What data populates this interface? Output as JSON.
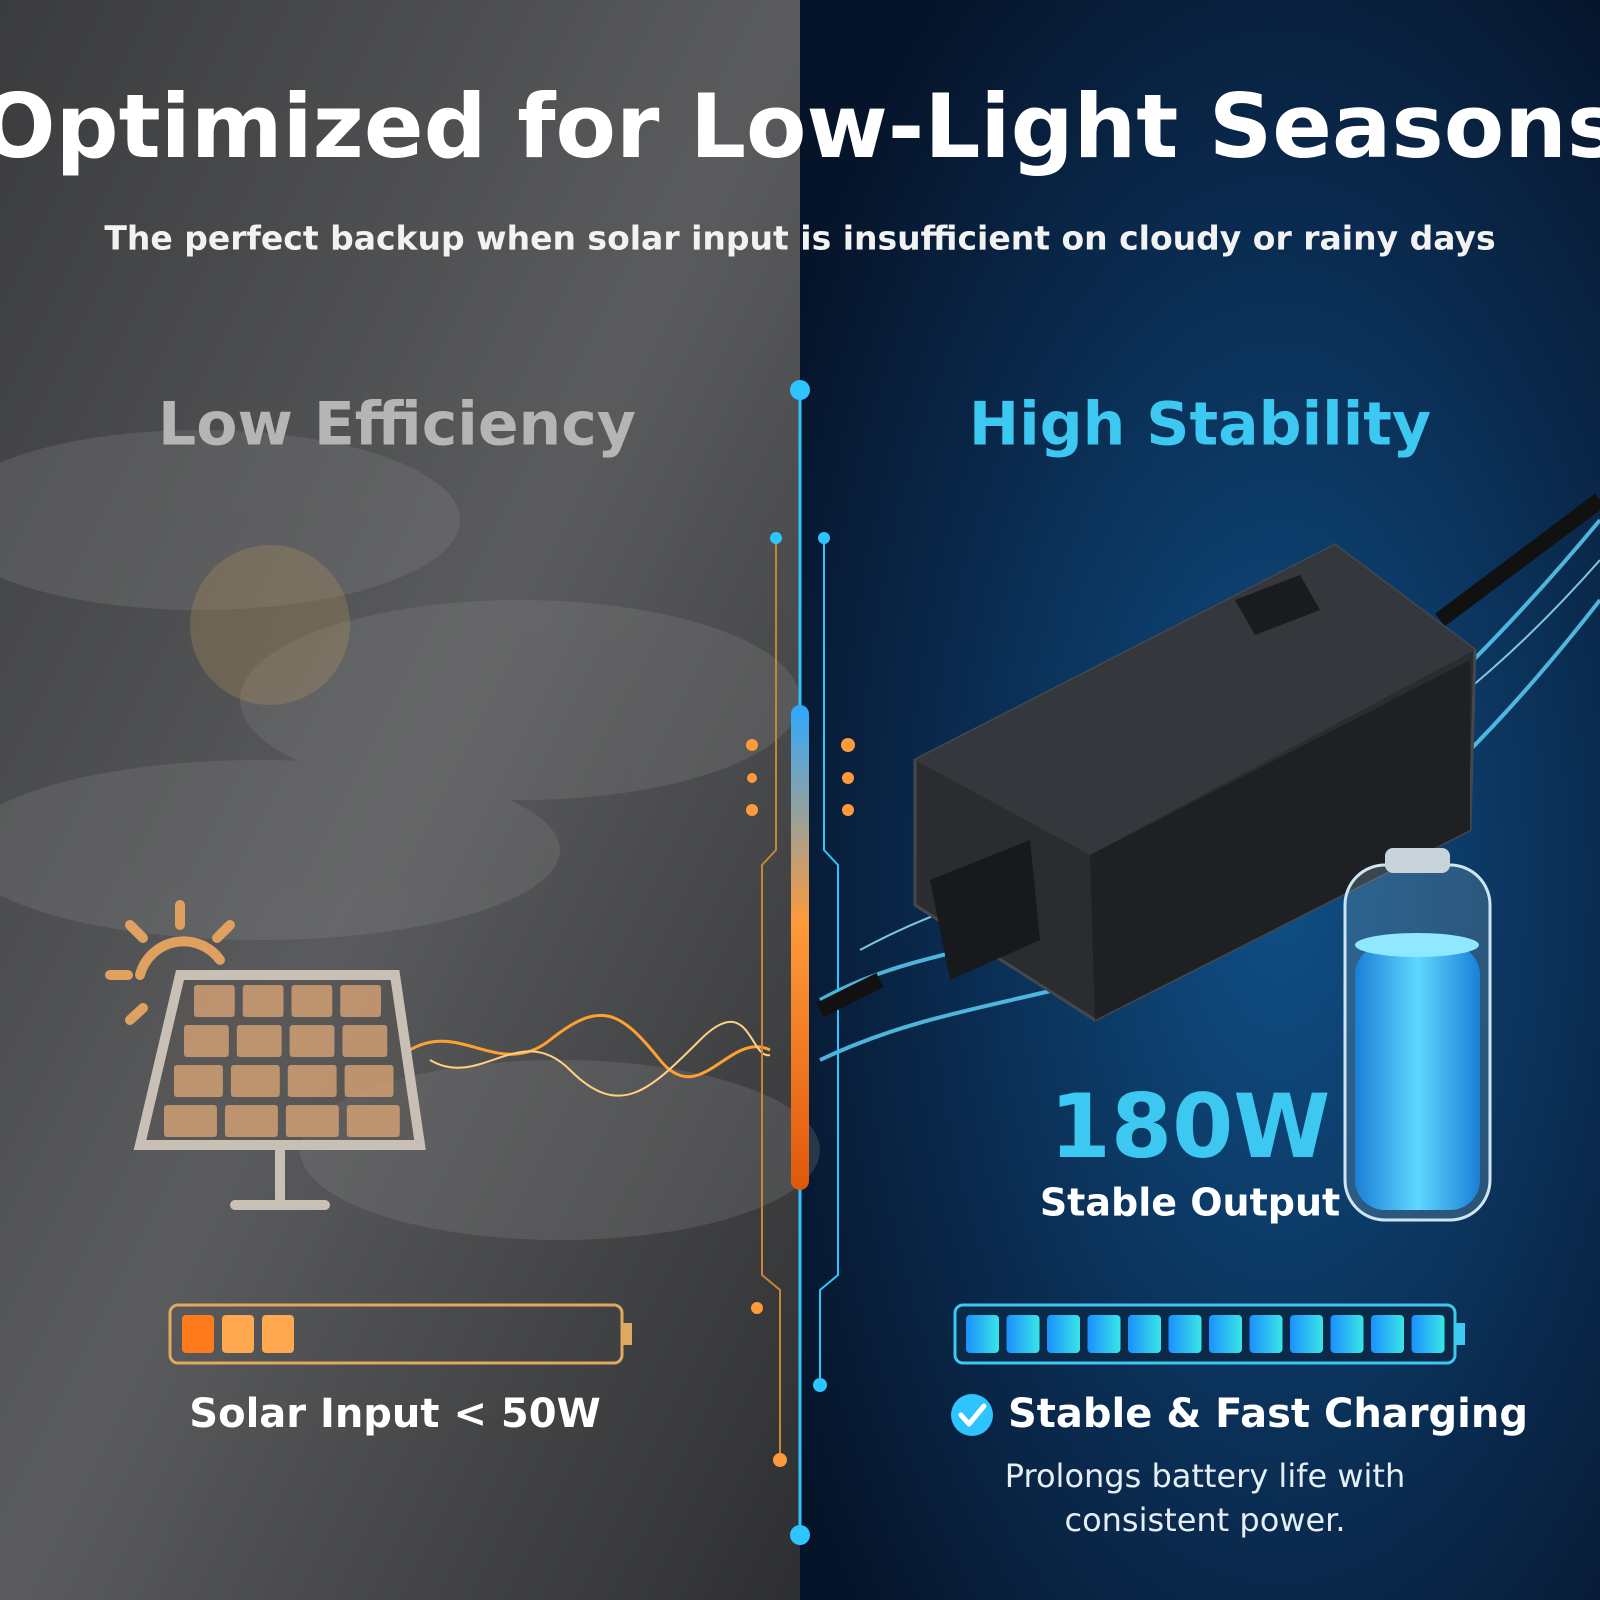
{
  "header": {
    "title": "Optimized for Low-Light Seasons",
    "subtitle": "The perfect backup when solar input is insufficient on cloudy or rainy days"
  },
  "left": {
    "heading": "Low Efficiency",
    "label": "Solar Input < 50W"
  },
  "right": {
    "heading": "High Stability",
    "power": "180W",
    "power_caption": "Stable Output",
    "feature": "Stable & Fast Charging",
    "description": [
      "Prolongs battery life with",
      "consistent power."
    ]
  }
}
